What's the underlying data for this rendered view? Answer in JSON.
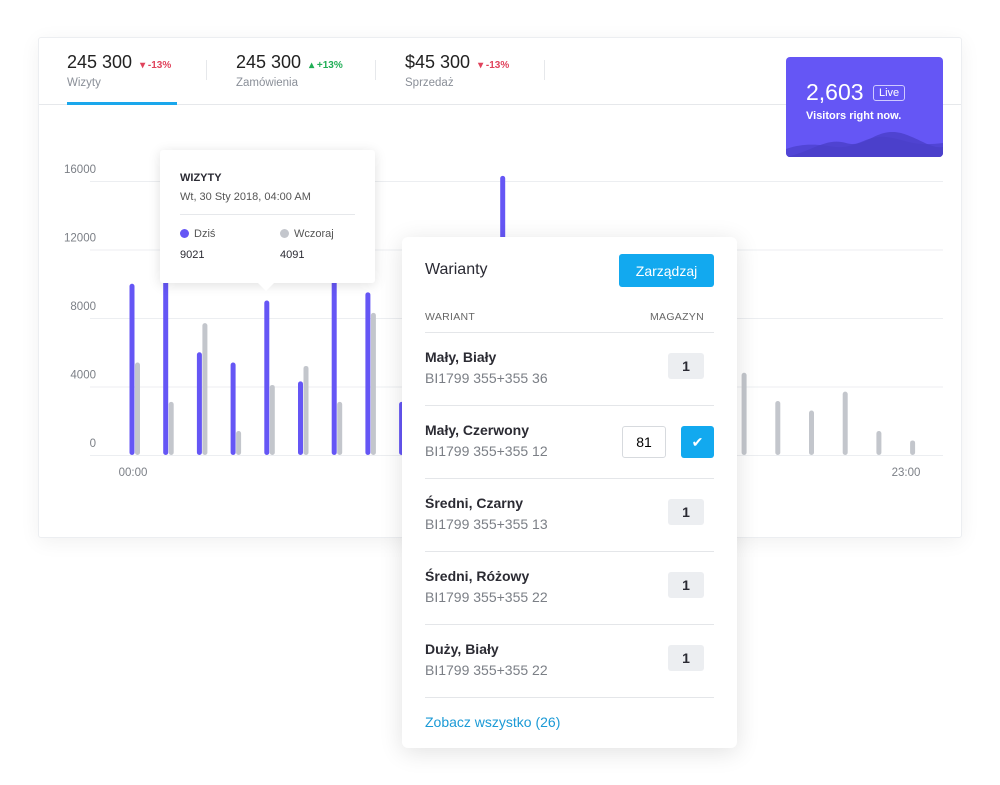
{
  "tabs": [
    {
      "value": "245 300",
      "delta": "-13%",
      "direction": "down",
      "label": "Wizyty",
      "active": true
    },
    {
      "value": "245 300",
      "delta": "+13%",
      "direction": "up",
      "label": "Zamówienia"
    },
    {
      "value": "$45 300",
      "delta": "-13%",
      "direction": "down",
      "label": "Sprzedaż"
    }
  ],
  "live": {
    "count": "2,603",
    "badge": "Live",
    "text": "Visitors right now."
  },
  "tooltip": {
    "title": "WIZYTY",
    "date": "Wt, 30 Sty 2018, 04:00 AM",
    "today_label": "Dziś",
    "yesterday_label": "Wczoraj",
    "today_value": "9021",
    "yesterday_value": "4091"
  },
  "chart_data": {
    "type": "bar",
    "x_labels": [
      "00:00",
      "23:00"
    ],
    "categories": [
      "00",
      "01",
      "02",
      "03",
      "04",
      "05",
      "06",
      "07",
      "08",
      "09",
      "10",
      "11",
      "12",
      "13",
      "14",
      "15",
      "16",
      "17",
      "18",
      "19",
      "20",
      "21",
      "22",
      "23"
    ],
    "yticks": [
      "0",
      "4000",
      "8000",
      "12000",
      "16000"
    ],
    "ylim": [
      0,
      16000
    ],
    "grid": true,
    "colors": {
      "today": "#6556f5",
      "yesterday": "#c3c6cc"
    },
    "series": [
      {
        "name": "Dziś",
        "values": [
          10000,
          11000,
          6000,
          5400,
          9021,
          4300,
          11000,
          9500,
          3100,
          0,
          0,
          16300,
          0,
          0,
          0,
          0,
          0,
          0,
          0,
          0,
          0,
          0,
          0,
          0
        ]
      },
      {
        "name": "Wczoraj",
        "values": [
          5400,
          3100,
          7700,
          1400,
          4091,
          5200,
          3100,
          8300,
          0,
          0,
          0,
          0,
          0,
          0,
          0,
          0,
          0,
          0,
          4800,
          3150,
          2600,
          3700,
          1400,
          850
        ]
      }
    ]
  },
  "variants": {
    "title": "Warianty",
    "manage": "Zarządzaj",
    "col_variant": "WARIANT",
    "col_stock": "MAGAZYN",
    "rows": [
      {
        "name": "Mały, Biały",
        "sku": "BI1799 355+355 36",
        "stock": "1"
      },
      {
        "name": "Mały, Czerwony",
        "sku": "BI1799 355+355 12",
        "stock": "81",
        "editing": true
      },
      {
        "name": "Średni, Czarny",
        "sku": "BI1799 355+355 13",
        "stock": "1"
      },
      {
        "name": "Średni, Różowy",
        "sku": "BI1799 355+355 22",
        "stock": "1"
      },
      {
        "name": "Duży, Biały",
        "sku": "BI1799 355+355 22",
        "stock": "1"
      }
    ],
    "see_all": "Zobacz wszystko (26)",
    "confirm_icon": "check-icon"
  }
}
